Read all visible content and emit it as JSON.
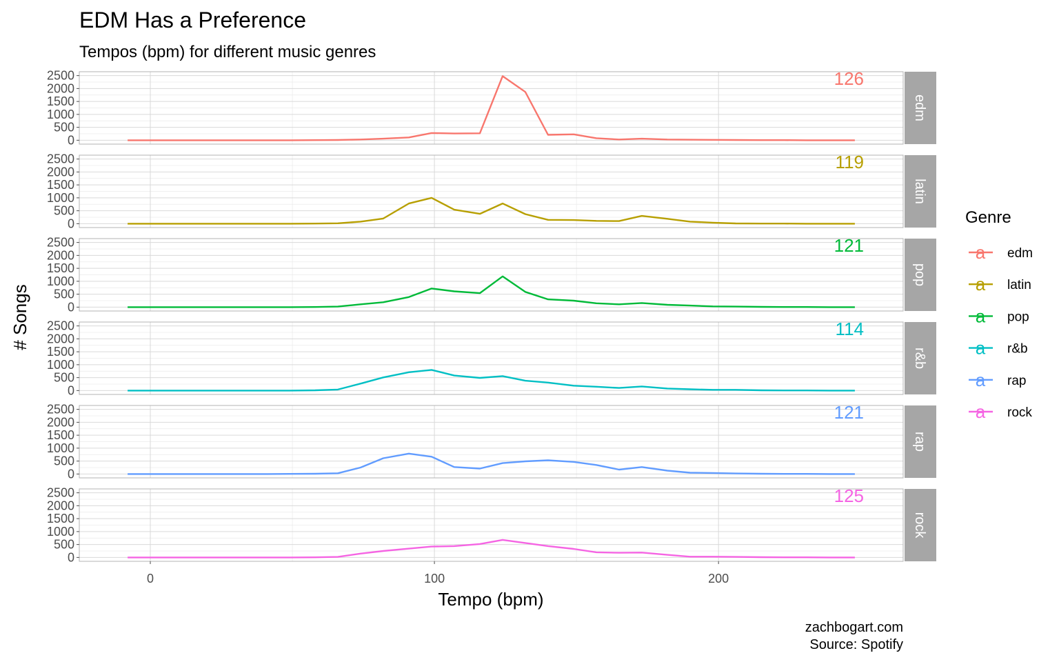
{
  "chart_data": {
    "type": "line",
    "title": "EDM Has a Preference",
    "subtitle": "Tempos (bpm) for different music genres",
    "xlabel": "Tempo (bpm)",
    "ylabel": "# Songs",
    "xlim": [
      -25,
      265
    ],
    "ylim": [
      -150,
      2650
    ],
    "x_ticks": [
      0,
      100,
      200
    ],
    "y_ticks": [
      0,
      500,
      1000,
      1500,
      2000,
      2500
    ],
    "grid": true,
    "legend": {
      "title": "Genre",
      "placement": "right",
      "key_glyph": "a"
    },
    "caption": [
      "zachbogart.com",
      "Source: Spotify"
    ],
    "x": [
      -8,
      0,
      8,
      16,
      25,
      33,
      41,
      49,
      58,
      66,
      74,
      82,
      91,
      99,
      107,
      116,
      124,
      132,
      140,
      149,
      157,
      165,
      173,
      182,
      190,
      198,
      206,
      215,
      223,
      231,
      239,
      248
    ],
    "series": [
      {
        "name": "edm",
        "color": "#F8766D",
        "annotation": "126",
        "values": [
          0,
          0,
          0,
          0,
          0,
          0,
          0,
          0,
          5,
          10,
          30,
          60,
          110,
          280,
          260,
          270,
          2480,
          1870,
          210,
          230,
          80,
          30,
          60,
          30,
          20,
          15,
          10,
          5,
          5,
          0,
          0,
          0
        ]
      },
      {
        "name": "latin",
        "color": "#B79F00",
        "annotation": "119",
        "values": [
          0,
          0,
          0,
          0,
          0,
          0,
          0,
          0,
          5,
          15,
          80,
          200,
          780,
          1000,
          540,
          380,
          780,
          370,
          150,
          140,
          110,
          100,
          300,
          190,
          80,
          40,
          10,
          5,
          5,
          0,
          0,
          0
        ]
      },
      {
        "name": "pop",
        "color": "#00BA38",
        "annotation": "121",
        "values": [
          0,
          0,
          0,
          0,
          0,
          0,
          0,
          0,
          5,
          20,
          110,
          190,
          390,
          720,
          610,
          540,
          1190,
          590,
          300,
          250,
          150,
          110,
          160,
          90,
          60,
          30,
          20,
          10,
          5,
          5,
          0,
          0
        ]
      },
      {
        "name": "r&b",
        "color": "#00BFC4",
        "annotation": "114",
        "values": [
          0,
          0,
          0,
          0,
          0,
          0,
          0,
          0,
          10,
          40,
          270,
          510,
          710,
          800,
          580,
          490,
          560,
          380,
          310,
          190,
          150,
          100,
          160,
          80,
          50,
          30,
          30,
          10,
          5,
          5,
          0,
          0
        ]
      },
      {
        "name": "rap",
        "color": "#619CFF",
        "annotation": "121",
        "values": [
          0,
          0,
          0,
          0,
          0,
          0,
          0,
          5,
          10,
          30,
          250,
          610,
          790,
          670,
          270,
          210,
          420,
          490,
          530,
          470,
          350,
          170,
          270,
          130,
          50,
          40,
          20,
          10,
          5,
          5,
          0,
          0
        ]
      },
      {
        "name": "rock",
        "color": "#F564E3",
        "annotation": "125",
        "values": [
          0,
          0,
          0,
          0,
          0,
          0,
          0,
          0,
          5,
          20,
          150,
          250,
          340,
          420,
          440,
          520,
          680,
          560,
          440,
          330,
          200,
          180,
          190,
          100,
          30,
          30,
          20,
          10,
          5,
          5,
          0,
          0
        ]
      }
    ]
  }
}
